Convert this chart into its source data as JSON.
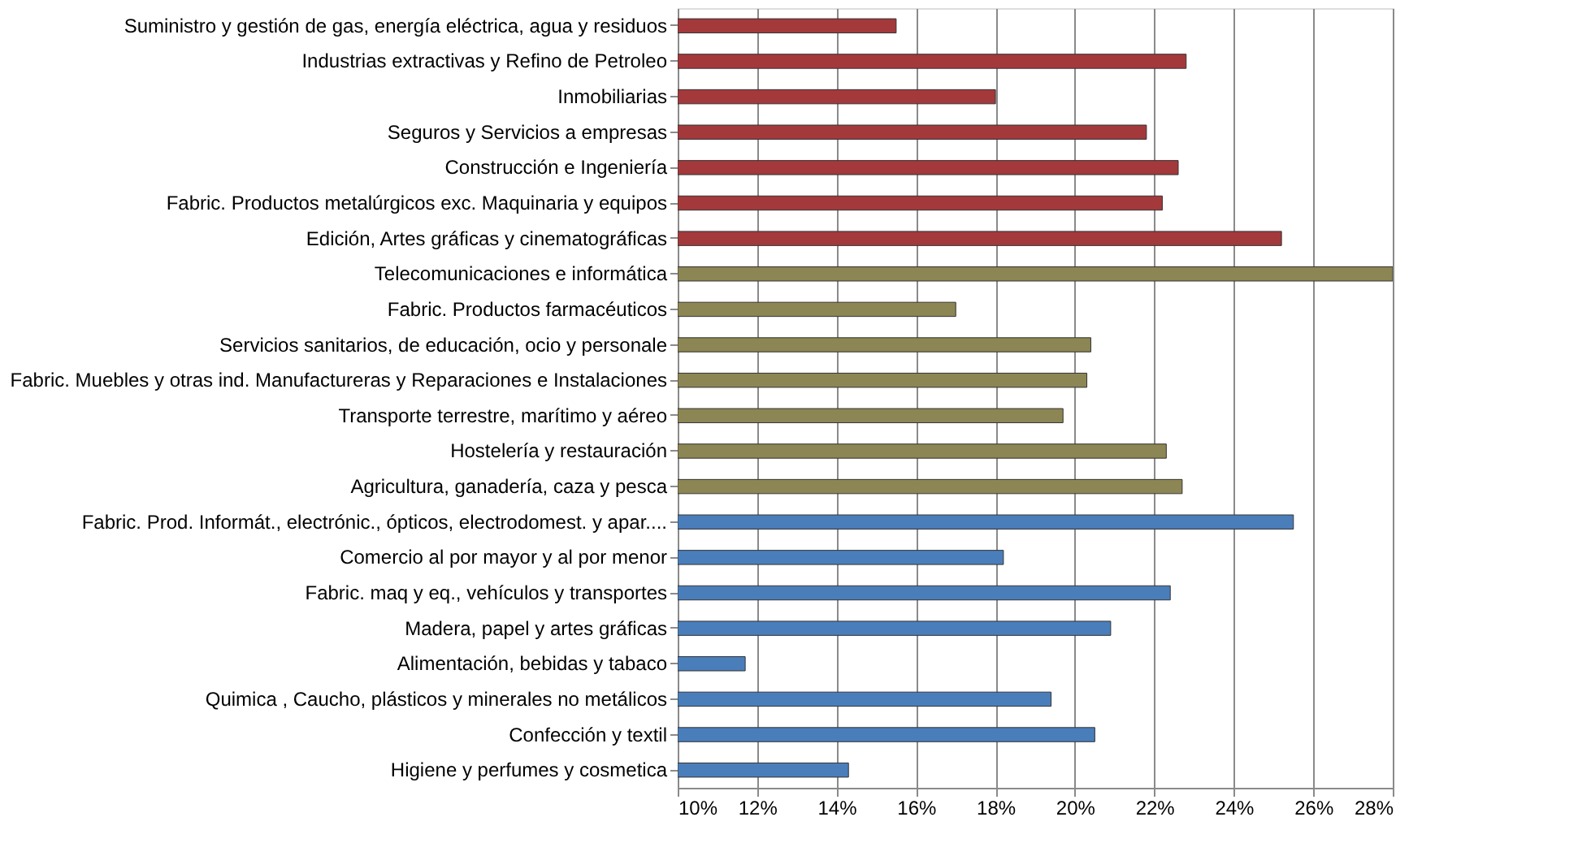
{
  "chart_data": {
    "type": "bar",
    "orientation": "horizontal",
    "grid": "x",
    "categories": [
      "Suministro y gestión de gas, energía eléctrica, agua y residuos",
      "Industrias extractivas y Refino de Petroleo",
      "Inmobiliarias",
      "Seguros y Servicios a empresas",
      "Construcción e Ingeniería",
      "Fabric. Productos metalúrgicos exc. Maquinaria y equipos",
      "Edición, Artes gráficas y cinematográficas",
      "Telecomunicaciones e informática",
      "Fabric. Productos farmacéuticos ",
      "Servicios sanitarios, de educación, ocio y personale",
      "Fabric. Muebles y otras ind. Manufactureras y Reparaciones e Instalaciones",
      "Transporte terrestre, marítimo y aéreo",
      "Hostelería y restauración",
      "Agricultura, ganadería, caza y pesca",
      "Fabric. Prod. Informát., electrónic., ópticos, electrodomest. y apar....",
      "Comercio al por mayor y al por menor",
      "Fabric.  maq y eq., vehículos y transportes",
      "Madera, papel y artes gráficas",
      "Alimentación, bebidas y tabaco",
      "Quimica ,  Caucho, plásticos y minerales no metálicos",
      "Confección y textil",
      "Higiene y perfumes y cosmetica"
    ],
    "values": [
      15.5,
      22.8,
      18.0,
      21.8,
      22.6,
      22.2,
      25.2,
      28.0,
      17.0,
      20.4,
      20.3,
      19.7,
      22.3,
      22.7,
      25.5,
      18.2,
      22.4,
      20.9,
      11.7,
      19.4,
      20.5,
      14.3
    ],
    "colors": [
      "#a3393b",
      "#a3393b",
      "#a3393b",
      "#a3393b",
      "#a3393b",
      "#a3393b",
      "#a3393b",
      "#8c8654",
      "#8c8654",
      "#8c8654",
      "#8c8654",
      "#8c8654",
      "#8c8654",
      "#8c8654",
      "#4a7ebb",
      "#4a7ebb",
      "#4a7ebb",
      "#4a7ebb",
      "#4a7ebb",
      "#4a7ebb",
      "#4a7ebb",
      "#4a7ebb"
    ],
    "xlim": [
      10,
      28
    ],
    "xticks": [
      {
        "value": 10,
        "label": "10%"
      },
      {
        "value": 12,
        "label": "12%"
      },
      {
        "value": 14,
        "label": "14%"
      },
      {
        "value": 16,
        "label": "16%"
      },
      {
        "value": 18,
        "label": "18%"
      },
      {
        "value": 20,
        "label": "20%"
      },
      {
        "value": 22,
        "label": "22%"
      },
      {
        "value": 24,
        "label": "24%"
      },
      {
        "value": 26,
        "label": "26%"
      },
      {
        "value": 28,
        "label": "28%"
      }
    ]
  }
}
